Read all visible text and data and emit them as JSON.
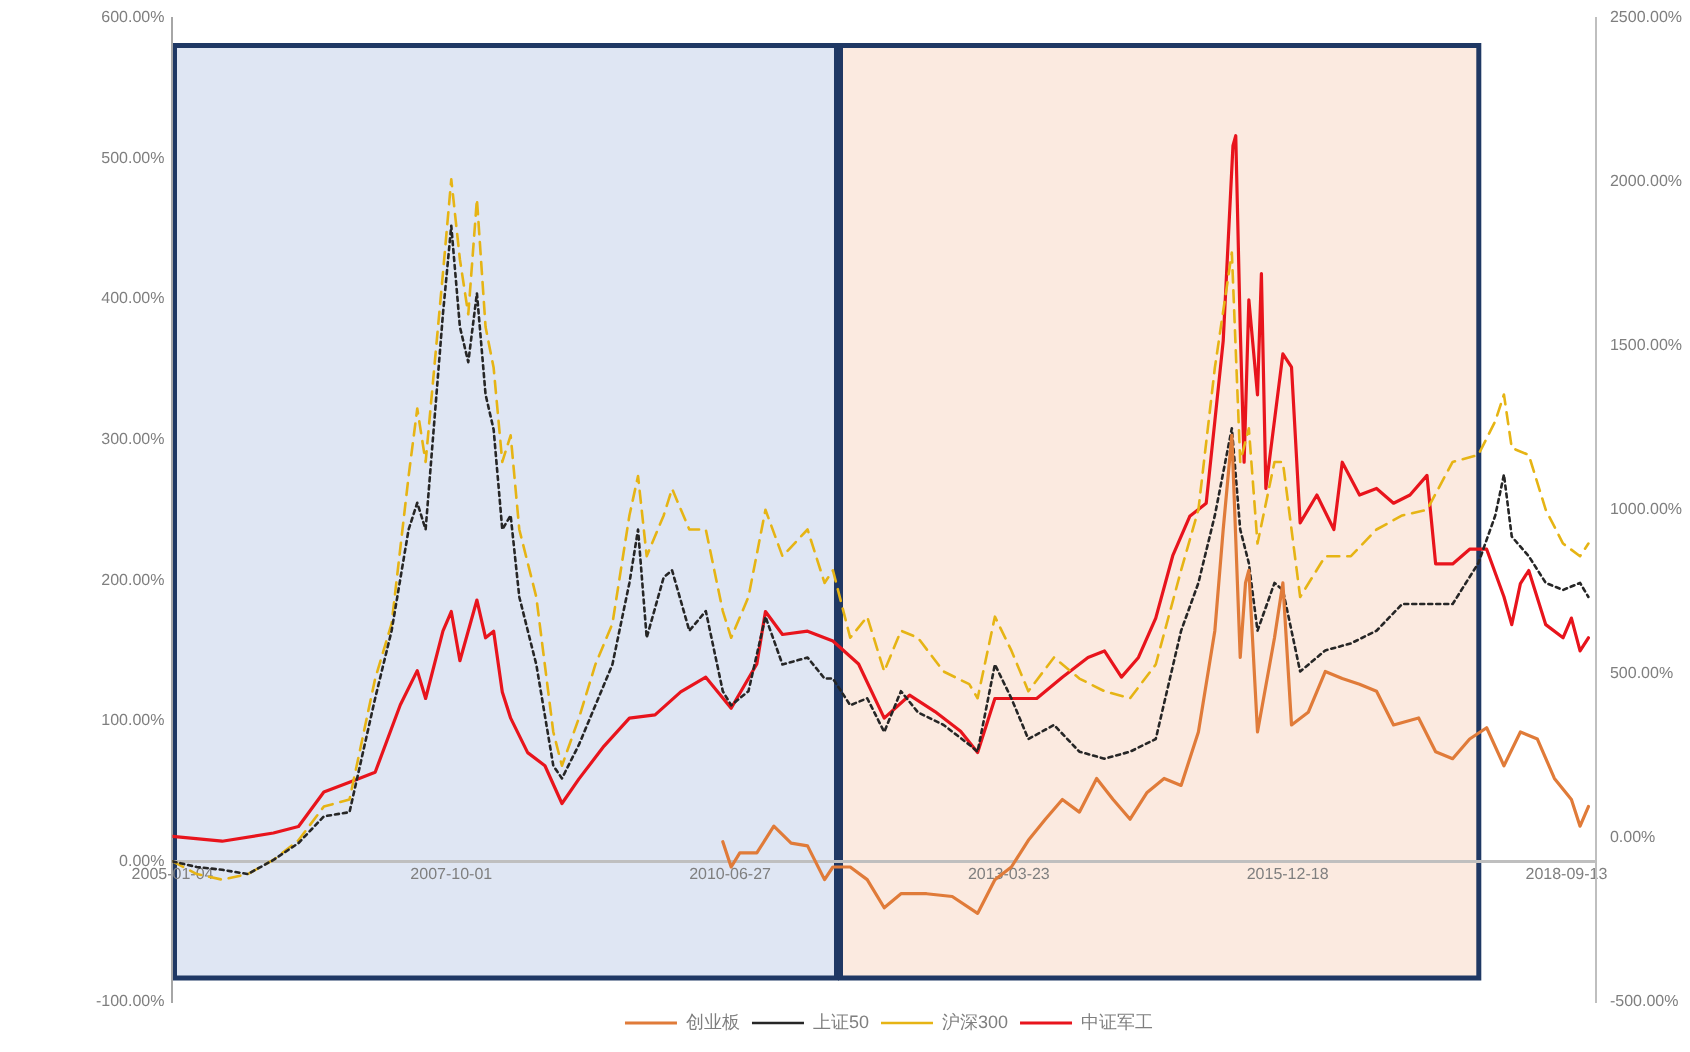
{
  "chart_data": {
    "type": "line",
    "xlim": [
      "2005-01-04",
      "2018-12-28"
    ],
    "xticks": [
      "2005-01-04",
      "2007-10-01",
      "2010-06-27",
      "2013-03-23",
      "2015-12-18",
      "2018-09-13"
    ],
    "ylim": [
      -100,
      600
    ],
    "yticks": [
      {
        "value": -100,
        "label": "-100.00%"
      },
      {
        "value": 0,
        "label": "0.00%"
      },
      {
        "value": 100,
        "label": "100.00%"
      },
      {
        "value": 200,
        "label": "200.00%"
      },
      {
        "value": 300,
        "label": "300.00%"
      },
      {
        "value": 400,
        "label": "400.00%"
      },
      {
        "value": 500,
        "label": "500.00%"
      },
      {
        "value": 600,
        "label": "600.00%"
      }
    ],
    "y2lim": [
      -500,
      2500
    ],
    "y2ticks": [
      {
        "value": -500,
        "label": "-500.00%"
      },
      {
        "value": 0,
        "label": "0.00%"
      },
      {
        "value": 500,
        "label": "500.00%"
      },
      {
        "value": 1000,
        "label": "1000.00%"
      },
      {
        "value": 1500,
        "label": "1500.00%"
      },
      {
        "value": 2000,
        "label": "2000.00%"
      },
      {
        "value": 2500,
        "label": "2500.00%"
      }
    ],
    "grid": false,
    "legend": "bottom",
    "marker": "none",
    "bands": [
      {
        "axis": "x",
        "from": "2005-01-04",
        "to": "2011-07-21",
        "color": "#dfe6f3"
      },
      {
        "axis": "x",
        "from": "2011-07-21",
        "to": "2017-11-10",
        "color": "#fbeae0"
      }
    ],
    "series": [
      {
        "name": "创业板",
        "color": "#e07b39",
        "line_style": "solid",
        "x": [
          "2010-06",
          "2010-07",
          "2010-08",
          "2010-10",
          "2010-12",
          "2011-02",
          "2011-04",
          "2011-06",
          "2011-07",
          "2011-09",
          "2011-11",
          "2012-01",
          "2012-03",
          "2012-06",
          "2012-09",
          "2012-12",
          "2013-02",
          "2013-04",
          "2013-06",
          "2013-08",
          "2013-10",
          "2013-12",
          "2014-02",
          "2014-04",
          "2014-06",
          "2014-08",
          "2014-10",
          "2014-12",
          "2015-02",
          "2015-04",
          "2015-05",
          "2015-06",
          "2015-07-01",
          "2015-07-20",
          "2015-08",
          "2015-09",
          "2015-11",
          "2015-12",
          "2016-01",
          "2016-03",
          "2016-05",
          "2016-07",
          "2016-09",
          "2016-11",
          "2017-01",
          "2017-04",
          "2017-06",
          "2017-08",
          "2017-10",
          "2017-12",
          "2018-02",
          "2018-04",
          "2018-06",
          "2018-08",
          "2018-10",
          "2018-11",
          "2018-12"
        ],
        "values": [
          14,
          -4,
          6,
          6,
          25,
          13,
          11,
          -13,
          -4,
          -4,
          -13,
          -33,
          -23,
          -23,
          -25,
          -37,
          -13,
          -4,
          15,
          30,
          44,
          35,
          59,
          44,
          30,
          49,
          59,
          54,
          92,
          164,
          236,
          303,
          145,
          198,
          207,
          92,
          159,
          198,
          97,
          106,
          135,
          130,
          126,
          121,
          97,
          102,
          78,
          73,
          87,
          95,
          68,
          92,
          87,
          59,
          44,
          25,
          39
        ]
      },
      {
        "name": "上证50",
        "color": "#262626",
        "line_style": "dotted",
        "x": [
          "2005-01-04",
          "2005-04",
          "2005-07",
          "2005-10",
          "2006-01",
          "2006-04",
          "2006-07",
          "2006-10",
          "2007-01",
          "2007-03",
          "2007-05",
          "2007-06",
          "2007-07",
          "2007-09",
          "2007-10",
          "2007-11",
          "2007-12",
          "2008-01",
          "2008-02",
          "2008-03",
          "2008-04",
          "2008-05",
          "2008-06",
          "2008-08",
          "2008-10",
          "2008-11",
          "2009-01",
          "2009-03",
          "2009-05",
          "2009-07",
          "2009-08",
          "2009-09",
          "2009-11",
          "2009-12",
          "2010-02",
          "2010-04",
          "2010-06",
          "2010-07",
          "2010-09",
          "2010-11",
          "2011-01",
          "2011-04",
          "2011-06",
          "2011-07",
          "2011-09",
          "2011-11",
          "2012-01",
          "2012-03",
          "2012-05",
          "2012-08",
          "2012-11",
          "2012-12",
          "2013-02",
          "2013-04",
          "2013-06",
          "2013-09",
          "2013-12",
          "2014-03",
          "2014-06",
          "2014-09",
          "2014-12",
          "2015-02",
          "2015-04",
          "2015-06",
          "2015-07",
          "2015-08",
          "2015-09",
          "2015-11",
          "2015-12",
          "2016-02",
          "2016-05",
          "2016-08",
          "2016-11",
          "2017-02",
          "2017-05",
          "2017-08",
          "2017-11",
          "2018-01",
          "2018-02",
          "2018-03",
          "2018-05",
          "2018-07",
          "2018-09",
          "2018-11",
          "2018-12"
        ],
        "values": [
          0,
          -4,
          -6,
          -9,
          1,
          13,
          32,
          35,
          116,
          164,
          236,
          255,
          236,
          389,
          452,
          380,
          355,
          404,
          332,
          307,
          236,
          246,
          188,
          140,
          68,
          59,
          83,
          111,
          140,
          198,
          236,
          159,
          202,
          207,
          164,
          178,
          121,
          111,
          121,
          174,
          140,
          145,
          130,
          130,
          111,
          116,
          92,
          121,
          106,
          97,
          83,
          78,
          140,
          116,
          87,
          97,
          78,
          73,
          78,
          87,
          164,
          198,
          246,
          308,
          236,
          212,
          164,
          198,
          193,
          135,
          150,
          155,
          164,
          183,
          183,
          183,
          212,
          246,
          275,
          231,
          217,
          198,
          193,
          198,
          188
        ]
      },
      {
        "name": "沪深300",
        "color": "#e6b414",
        "line_style": "dashed",
        "x": [
          "2005-01-04",
          "2005-04",
          "2005-07",
          "2005-10",
          "2006-01",
          "2006-04",
          "2006-07",
          "2006-10",
          "2007-01",
          "2007-03",
          "2007-05",
          "2007-06",
          "2007-07",
          "2007-09",
          "2007-10",
          "2007-11",
          "2007-12",
          "2008-01",
          "2008-02",
          "2008-03",
          "2008-04",
          "2008-05",
          "2008-06",
          "2008-08",
          "2008-10",
          "2008-11",
          "2009-01",
          "2009-03",
          "2009-05",
          "2009-07",
          "2009-08",
          "2009-09",
          "2009-11",
          "2009-12",
          "2010-02",
          "2010-04",
          "2010-06",
          "2010-07",
          "2010-09",
          "2010-11",
          "2011-01",
          "2011-04",
          "2011-06",
          "2011-07",
          "2011-09",
          "2011-11",
          "2012-01",
          "2012-03",
          "2012-05",
          "2012-08",
          "2012-11",
          "2012-12",
          "2013-02",
          "2013-04",
          "2013-06",
          "2013-09",
          "2013-12",
          "2014-03",
          "2014-06",
          "2014-09",
          "2014-12",
          "2015-02",
          "2015-04",
          "2015-06",
          "2015-07",
          "2015-08",
          "2015-09",
          "2015-11",
          "2015-12",
          "2016-02",
          "2016-05",
          "2016-08",
          "2016-11",
          "2017-02",
          "2017-05",
          "2017-08",
          "2017-11",
          "2018-01",
          "2018-02",
          "2018-03",
          "2018-05",
          "2018-07",
          "2018-09",
          "2018-11",
          "2018-12"
        ],
        "values": [
          0,
          -9,
          -13,
          -9,
          1,
          15,
          39,
          44,
          130,
          169,
          274,
          322,
          284,
          418,
          485,
          428,
          389,
          471,
          380,
          351,
          284,
          303,
          236,
          188,
          92,
          68,
          102,
          140,
          169,
          246,
          274,
          217,
          246,
          265,
          236,
          236,
          178,
          159,
          188,
          250,
          217,
          236,
          198,
          207,
          159,
          174,
          135,
          164,
          159,
          135,
          126,
          116,
          174,
          150,
          121,
          145,
          130,
          121,
          116,
          140,
          207,
          250,
          351,
          433,
          284,
          308,
          226,
          284,
          284,
          188,
          217,
          217,
          236,
          246,
          250,
          284,
          289,
          313,
          332,
          294,
          289,
          250,
          226,
          217,
          226
        ]
      },
      {
        "name": "中证军工",
        "color": "#e8141c",
        "line_style": "solid",
        "axis": "y2",
        "x": [
          "2005-01-04",
          "2005-07",
          "2006-01",
          "2006-04",
          "2006-07",
          "2006-10",
          "2007-01",
          "2007-04",
          "2007-06",
          "2007-07",
          "2007-09",
          "2007-10",
          "2007-11",
          "2008-01",
          "2008-02",
          "2008-03",
          "2008-04",
          "2008-05",
          "2008-07",
          "2008-09",
          "2008-11",
          "2009-01",
          "2009-04",
          "2009-07",
          "2009-10",
          "2010-01",
          "2010-04",
          "2010-07",
          "2010-10",
          "2010-11",
          "2011-01",
          "2011-04",
          "2011-07",
          "2011-10",
          "2012-01",
          "2012-04",
          "2012-07",
          "2012-10",
          "2012-12",
          "2013-02",
          "2013-05",
          "2013-07",
          "2013-10",
          "2014-01",
          "2014-03",
          "2014-05",
          "2014-07",
          "2014-09",
          "2014-11",
          "2015-01",
          "2015-03",
          "2015-04",
          "2015-05",
          "2015-06-05",
          "2015-06-15",
          "2015-07-01",
          "2015-07-15",
          "2015-08-01",
          "2015-09-01",
          "2015-09-15",
          "2015-10",
          "2015-12",
          "2016-01",
          "2016-02",
          "2016-04",
          "2016-06",
          "2016-07",
          "2016-09",
          "2016-11",
          "2017-01",
          "2017-03",
          "2017-05",
          "2017-06",
          "2017-08",
          "2017-10",
          "2017-12",
          "2018-02",
          "2018-03",
          "2018-04",
          "2018-05",
          "2018-07",
          "2018-09",
          "2018-10",
          "2018-11",
          "2018-12"
        ],
        "values": [
          5,
          -10,
          15,
          35,
          140,
          170,
          200,
          405,
          510,
          425,
          630,
          690,
          540,
          725,
          610,
          630,
          445,
          365,
          260,
          220,
          105,
          180,
          280,
          365,
          375,
          445,
          490,
          395,
          530,
          690,
          620,
          630,
          600,
          530,
          365,
          435,
          385,
          325,
          260,
          425,
          425,
          425,
          490,
          550,
          570,
          490,
          550,
          670,
          860,
          980,
          1020,
          1270,
          1515,
          2110,
          2140,
          1555,
          1145,
          1640,
          1350,
          1720,
          1065,
          1475,
          1435,
          960,
          1045,
          940,
          1145,
          1045,
          1065,
          1020,
          1045,
          1105,
          835,
          835,
          880,
          880,
          735,
          650,
          775,
          815,
          650,
          610,
          670,
          570,
          610
        ]
      }
    ]
  }
}
